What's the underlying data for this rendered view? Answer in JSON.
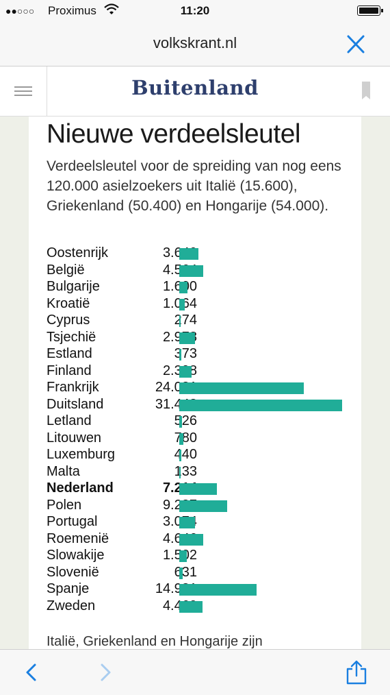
{
  "status_bar": {
    "signal": "●●○○○",
    "carrier": "Proximus",
    "time": "11:20"
  },
  "browser": {
    "url": "volkskrant.nl"
  },
  "section": {
    "title": "Buitenland"
  },
  "article": {
    "headline": "Nieuwe verdeelsleutel",
    "intro": "Verdeelsleutel voor de spreiding van nog eens 120.000 asielzoekers uit Italië (15.600), Griekenland  (50.400) en Hongarije (54.000).",
    "footer_text": "Italië, Griekenland en Hongarije zijn"
  },
  "chart_data": {
    "type": "bar",
    "orientation": "horizontal",
    "bar_color": "#20ad98",
    "highlight": "Nederland",
    "categories": [
      "Oostenrijk",
      "België",
      "Bulgarije",
      "Kroatië",
      "Cyprus",
      "Tsjechië",
      "Estland",
      "Finland",
      "Frankrijk",
      "Duitsland",
      "Letland",
      "Litouwen",
      "Luxemburg",
      "Malta",
      "Nederland",
      "Polen",
      "Portugal",
      "Roemenië",
      "Slowakije",
      "Slovenië",
      "Spanje",
      "Zweden"
    ],
    "labels": [
      "3.640",
      "4.564",
      "1.600",
      "1.064",
      "274",
      "2.978",
      "373",
      "2.398",
      "24.031",
      "31.443",
      "526",
      "780",
      "440",
      "133",
      "7.214",
      "9.287",
      "3.074",
      "4.646",
      "1.502",
      "631",
      "14.931",
      "4.469"
    ],
    "values": [
      3640,
      4564,
      1600,
      1064,
      274,
      2978,
      373,
      2398,
      24031,
      31443,
      526,
      780,
      440,
      133,
      7214,
      9287,
      3074,
      4646,
      1502,
      631,
      14931,
      4469
    ]
  }
}
